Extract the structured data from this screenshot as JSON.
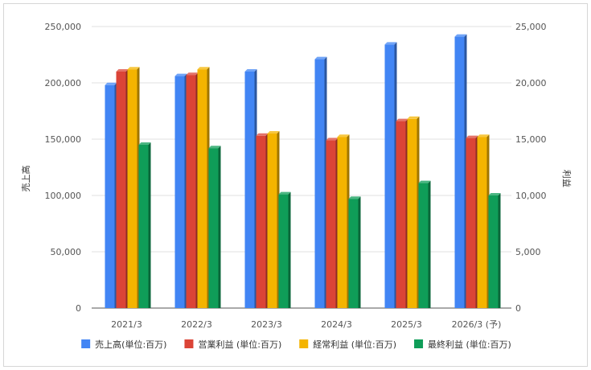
{
  "chart_data": {
    "type": "bar",
    "categories": [
      "2021/3",
      "2022/3",
      "2023/3",
      "2024/3",
      "2025/3",
      "2026/3 (予)"
    ],
    "ylabel_left": "売上高",
    "ylabel_right": "利益",
    "ylim_left": [
      0,
      250000
    ],
    "ylim_right": [
      0,
      25000
    ],
    "yticks_left": [
      "0",
      "50,000",
      "100,000",
      "150,000",
      "200,000",
      "250,000"
    ],
    "yticks_right": [
      "0",
      "5,000",
      "10,000",
      "15,000",
      "20,000",
      "25,000"
    ],
    "grid": true,
    "legend_position": "bottom",
    "series": [
      {
        "name": "売上高(単位:百万)",
        "axis": "left",
        "color": "#4285f4",
        "values": [
          198000,
          206000,
          210000,
          221000,
          234000,
          241000
        ]
      },
      {
        "name": "営業利益 (単位:百万)",
        "axis": "right",
        "color": "#db4437",
        "values": [
          21000,
          20700,
          15300,
          14900,
          16600,
          15100
        ]
      },
      {
        "name": "経常利益 (単位:百万)",
        "axis": "right",
        "color": "#f4b400",
        "values": [
          21200,
          21200,
          15500,
          15200,
          16800,
          15200
        ]
      },
      {
        "name": "最終利益 (単位:百万)",
        "axis": "right",
        "color": "#0f9d58",
        "values": [
          14500,
          14200,
          10100,
          9700,
          11100,
          10000
        ]
      }
    ]
  }
}
